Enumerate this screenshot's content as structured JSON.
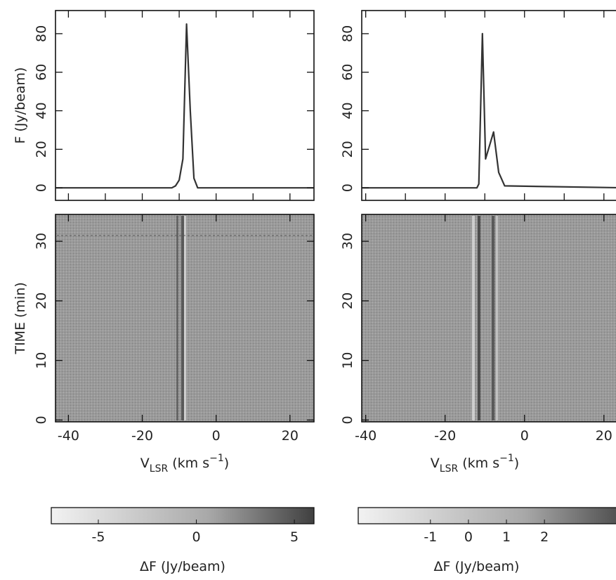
{
  "chart_data": [
    {
      "type": "line",
      "ylabel": "F (Jy/beam)",
      "color": "#333333",
      "x": [
        -43.5,
        -12,
        -11,
        -10,
        -9,
        -8,
        -7,
        -6,
        -5,
        26.5
      ],
      "values": [
        0,
        0,
        1,
        4,
        15,
        85,
        40,
        5,
        0,
        0
      ],
      "xlim": [
        -43.5,
        26.5
      ],
      "ylim": [
        -6.5,
        92
      ],
      "xticks": [
        -40,
        -30,
        -20,
        -10,
        0,
        10,
        20
      ],
      "yticks": [
        0,
        20,
        40,
        60,
        80
      ]
    },
    {
      "type": "image",
      "ylabel": "TIME (min)",
      "xlabel": {
        "main": "V",
        "sub": "LSR",
        "rest": " (km s",
        "sup": "−1",
        "end": ")"
      },
      "xlim": [
        -43.5,
        26.5
      ],
      "ylim": [
        -0.3,
        34.5
      ],
      "xticks": [
        -40,
        -20,
        0,
        20
      ],
      "yticks": [
        0,
        10,
        20,
        30
      ]
    },
    {
      "type": "colorbar",
      "label": "ΔF (Jy/beam)",
      "xlim": [
        -7.4,
        6
      ],
      "xticks": [
        -5,
        0,
        5
      ]
    },
    {
      "type": "line",
      "color": "#333333",
      "x": [
        -41,
        -13,
        -12,
        -11.5,
        -10.6,
        -9.8,
        -7.8,
        -6.5,
        -5,
        26
      ],
      "values": [
        0,
        0,
        0,
        2,
        80,
        15,
        29,
        8,
        1,
        0
      ],
      "xlim": [
        -41,
        28
      ],
      "ylim": [
        -6.5,
        92
      ],
      "xticks": [
        -40,
        -30,
        -20,
        -10,
        0,
        10,
        20
      ],
      "yticks": [
        0,
        20,
        40,
        60,
        80
      ]
    },
    {
      "type": "image",
      "xlabel": {
        "main": "V",
        "sub": "LSR",
        "rest": " (km s",
        "sup": "−1",
        "end": ")"
      },
      "xlim": [
        -41,
        28
      ],
      "ylim": [
        -0.3,
        34.5
      ],
      "xticks": [
        -40,
        -20,
        0,
        20
      ],
      "yticks": [
        0,
        10,
        20,
        30
      ]
    },
    {
      "type": "colorbar",
      "label": "ΔF (Jy/beam)",
      "xlim": [
        -2.9,
        4.4
      ],
      "xticks": [
        -1,
        0,
        1,
        2
      ]
    }
  ]
}
